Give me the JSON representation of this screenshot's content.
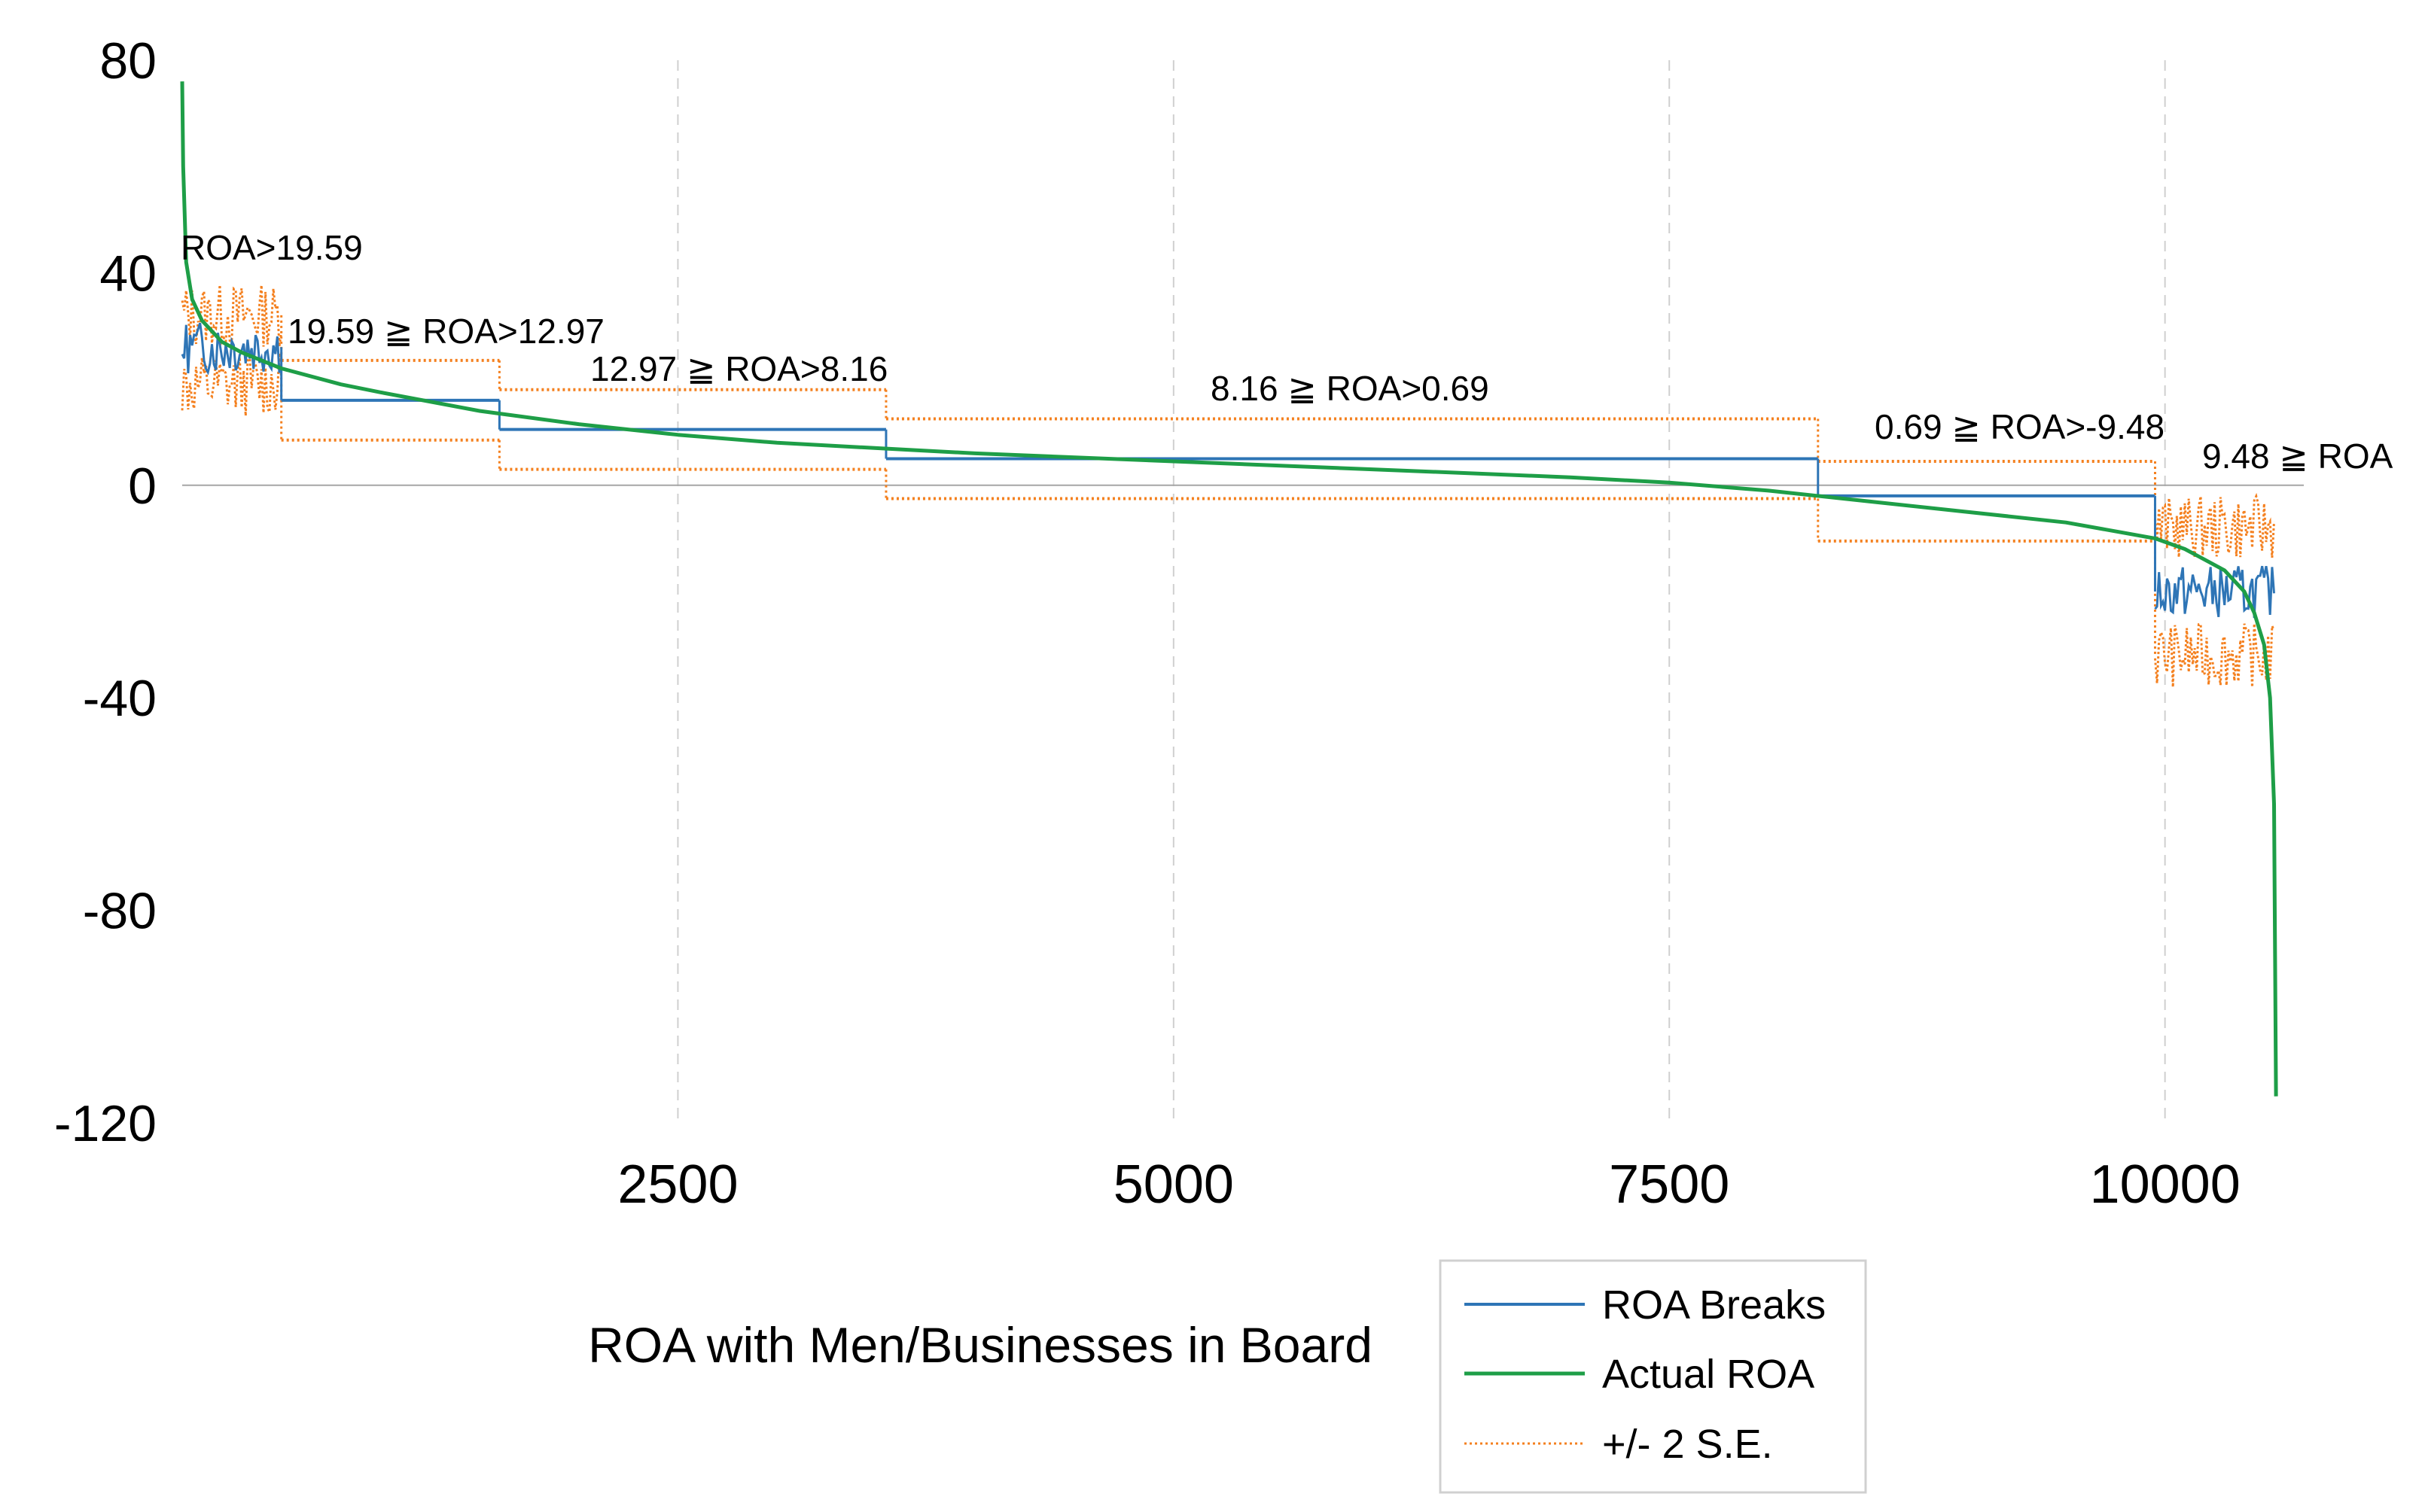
{
  "chart_data": {
    "type": "line",
    "title": "",
    "xlabel": "ROA with Men/Businesses in Board",
    "ylabel": "",
    "xlim": [
      0,
      10700
    ],
    "ylim": [
      -120,
      80
    ],
    "x_ticks": [
      2500,
      5000,
      7500,
      10000
    ],
    "x_tick_labels": [
      "2500",
      "5000",
      "7500",
      "10000"
    ],
    "y_ticks": [
      80,
      40,
      0,
      -40,
      -80,
      -120
    ],
    "y_tick_labels": [
      "80",
      "40",
      "0",
      "-40",
      "-80",
      "-120"
    ],
    "grid": {
      "vertical_dashed": true,
      "zero_line": true
    },
    "legend": {
      "position": "bottom-right",
      "entries": [
        "ROA Breaks",
        "Actual ROA",
        "+/- 2 S.E."
      ]
    },
    "colors": {
      "roa_breaks": "#2e75b6",
      "actual_roa": "#1e9e47",
      "se_band": "#f4801f",
      "grid": "#cfcfcf",
      "zero": "#a6a6a6"
    },
    "segments": [
      {
        "label": "ROA>19.59",
        "x_start": 0,
        "x_end": 500,
        "mean": 26,
        "upper": 32,
        "lower": 19,
        "noisy": true
      },
      {
        "label": "19.59 ≧ ROA>12.97",
        "x_start": 500,
        "x_end": 1600,
        "mean": 16,
        "upper": 23.5,
        "lower": 8.5,
        "noisy": false
      },
      {
        "label": "12.97 ≧ ROA>8.16",
        "x_start": 1600,
        "x_end": 3550,
        "mean": 10.5,
        "upper": 18,
        "lower": 3,
        "noisy": false
      },
      {
        "label": "8.16 ≧ ROA>0.69",
        "x_start": 3550,
        "x_end": 8250,
        "mean": 5,
        "upper": 12.5,
        "lower": -2.5,
        "noisy": false
      },
      {
        "label": "0.69 ≧ ROA>-9.48",
        "x_start": 8250,
        "x_end": 9950,
        "mean": -2,
        "upper": 4.5,
        "lower": -10.5,
        "noisy": false
      },
      {
        "label": "9.48 ≧ ROA",
        "x_start": 9950,
        "x_end": 10550,
        "mean": -20,
        "upper": -8,
        "lower": -32,
        "noisy": true
      }
    ],
    "series": [
      {
        "name": "Actual ROA",
        "x": [
          0,
          5,
          20,
          50,
          100,
          200,
          300,
          500,
          800,
          1000,
          1500,
          2000,
          2500,
          3000,
          3500,
          4000,
          5000,
          6000,
          7000,
          7500,
          8000,
          8500,
          9000,
          9500,
          9800,
          9950,
          10100,
          10200,
          10300,
          10400,
          10450,
          10500,
          10530,
          10550,
          10560
        ],
        "y": [
          76,
          60,
          42,
          35,
          31,
          27,
          25,
          22,
          19,
          17.5,
          14,
          11.5,
          9.5,
          8,
          7,
          6,
          4.5,
          3,
          1.5,
          0.5,
          -1,
          -3,
          -5,
          -7,
          -9,
          -10,
          -12,
          -14,
          -16,
          -20,
          -24,
          -30,
          -40,
          -60,
          -115
        ]
      }
    ]
  }
}
